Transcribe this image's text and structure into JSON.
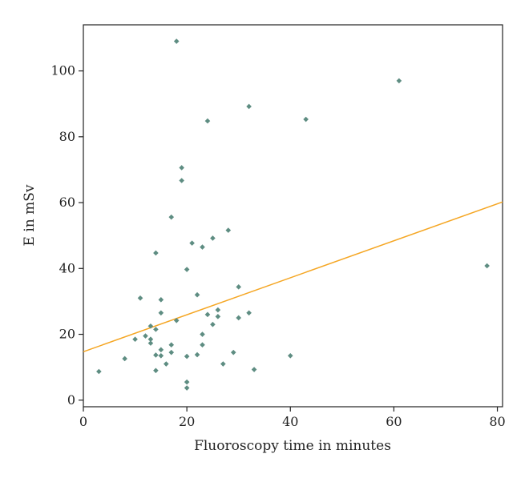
{
  "chart_data": {
    "type": "scatter",
    "title": "",
    "xlabel": "Fluoroscopy time in minutes",
    "ylabel": "E in mSv",
    "xlim": [
      0,
      81
    ],
    "ylim": [
      -2,
      114
    ],
    "xticks": [
      0,
      20,
      40,
      60,
      80
    ],
    "yticks": [
      0,
      20,
      40,
      60,
      80,
      100
    ],
    "grid": false,
    "legend": "none",
    "marker_color": "#5e8d82",
    "trend_color": "#f5a623",
    "series": [
      {
        "points": [
          [
            3,
            8.7
          ],
          [
            8,
            12.6
          ],
          [
            10,
            18.5
          ],
          [
            11,
            31
          ],
          [
            12,
            19.5
          ],
          [
            13,
            22.5
          ],
          [
            13,
            18.5
          ],
          [
            13,
            17.3
          ],
          [
            14,
            44.7
          ],
          [
            14,
            21.5
          ],
          [
            14,
            13.7
          ],
          [
            14,
            9
          ],
          [
            15,
            30.5
          ],
          [
            15,
            26.5
          ],
          [
            15,
            15.3
          ],
          [
            15,
            13.5
          ],
          [
            16,
            11
          ],
          [
            17,
            55.6
          ],
          [
            17,
            16.8
          ],
          [
            17,
            14.5
          ],
          [
            18,
            109
          ],
          [
            18,
            24.2
          ],
          [
            19,
            70.6
          ],
          [
            19,
            66.7
          ],
          [
            20,
            39.7
          ],
          [
            20,
            13.3
          ],
          [
            20,
            5.5
          ],
          [
            20,
            3.7
          ],
          [
            21,
            47.7
          ],
          [
            22,
            32
          ],
          [
            22,
            13.8
          ],
          [
            23,
            46.5
          ],
          [
            23,
            20
          ],
          [
            23,
            16.8
          ],
          [
            24,
            84.8
          ],
          [
            24,
            26
          ],
          [
            25,
            49.2
          ],
          [
            25,
            23
          ],
          [
            26,
            27.4
          ],
          [
            26,
            25.4
          ],
          [
            27,
            11
          ],
          [
            28,
            51.6
          ],
          [
            29,
            14.5
          ],
          [
            30,
            34.4
          ],
          [
            30,
            25
          ],
          [
            32,
            89.2
          ],
          [
            32,
            26.5
          ],
          [
            33,
            9.3
          ],
          [
            40,
            13.5
          ],
          [
            43,
            85.3
          ],
          [
            61,
            97
          ],
          [
            78,
            40.8
          ]
        ]
      }
    ],
    "trendline": {
      "x": [
        0,
        81
      ],
      "y": [
        14.7,
        60.2
      ]
    }
  }
}
